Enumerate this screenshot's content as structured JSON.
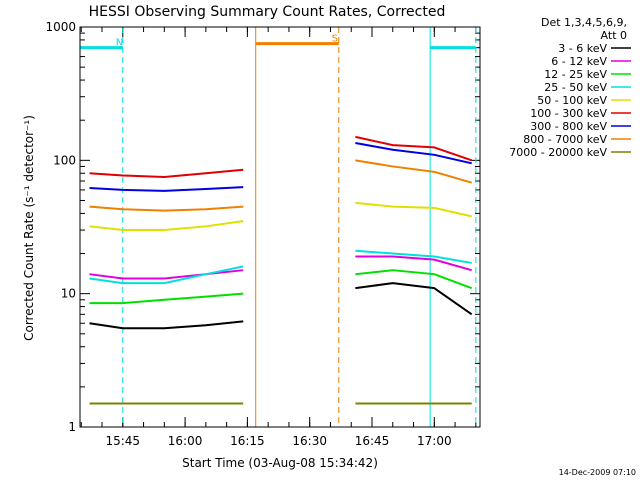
{
  "chart_data": {
    "type": "line",
    "title": "HESSI Observing Summary Count Rates, Corrected",
    "xlabel": "Start Time (03-Aug-08 15:34:42)",
    "ylabel": "Corrected Count Rate (s⁻¹ detector⁻¹)",
    "y_scale": "log",
    "ylim": [
      1,
      1000
    ],
    "xlim": [
      "15:34:42",
      "17:11:00"
    ],
    "x_ticks": [
      "15:45",
      "16:00",
      "16:15",
      "16:30",
      "16:45",
      "17:00"
    ],
    "y_ticks": [
      "1",
      "10",
      "100",
      "1000"
    ],
    "grid": false,
    "legend_header": [
      "Det 1,3,4,5,6,9,",
      "Att 0"
    ],
    "legend_position": "right",
    "series": [
      {
        "name": "3 - 6 keV",
        "color": "#000000",
        "segments": [
          {
            "x": [
              "15:37",
              "15:45",
              "15:55",
              "16:05",
              "16:14"
            ],
            "y": [
              6,
              5.5,
              5.5,
              5.8,
              6.2
            ]
          },
          {
            "x": [
              "16:41",
              "16:50",
              "17:00",
              "17:09"
            ],
            "y": [
              11,
              12,
              11,
              7
            ]
          }
        ]
      },
      {
        "name": "6 - 12 keV",
        "color": "#e000e0",
        "segments": [
          {
            "x": [
              "15:37",
              "15:45",
              "15:55",
              "16:05",
              "16:14"
            ],
            "y": [
              14,
              13,
              13,
              14,
              15
            ]
          },
          {
            "x": [
              "16:41",
              "16:50",
              "17:00",
              "17:09"
            ],
            "y": [
              19,
              19,
              18,
              15
            ]
          }
        ]
      },
      {
        "name": "12 - 25 keV",
        "color": "#00e000",
        "segments": [
          {
            "x": [
              "15:37",
              "15:45",
              "15:55",
              "16:05",
              "16:14"
            ],
            "y": [
              8.5,
              8.5,
              9,
              9.5,
              10
            ]
          },
          {
            "x": [
              "16:41",
              "16:50",
              "17:00",
              "17:09"
            ],
            "y": [
              14,
              15,
              14,
              11
            ]
          }
        ]
      },
      {
        "name": "25 - 50 keV",
        "color": "#00e0e0",
        "segments": [
          {
            "x": [
              "15:37",
              "15:45",
              "15:55",
              "16:05",
              "16:14"
            ],
            "y": [
              13,
              12,
              12,
              14,
              16
            ]
          },
          {
            "x": [
              "16:41",
              "16:50",
              "17:00",
              "17:09"
            ],
            "y": [
              21,
              20,
              19,
              17
            ]
          }
        ]
      },
      {
        "name": "50 - 100 keV",
        "color": "#e0e000",
        "segments": [
          {
            "x": [
              "15:37",
              "15:45",
              "15:55",
              "16:05",
              "16:14"
            ],
            "y": [
              32,
              30,
              30,
              32,
              35
            ]
          },
          {
            "x": [
              "16:41",
              "16:50",
              "17:00",
              "17:09"
            ],
            "y": [
              48,
              45,
              44,
              38
            ]
          }
        ]
      },
      {
        "name": "100 - 300 keV",
        "color": "#e00000",
        "segments": [
          {
            "x": [
              "15:37",
              "15:45",
              "15:55",
              "16:05",
              "16:14"
            ],
            "y": [
              80,
              77,
              75,
              80,
              85
            ]
          },
          {
            "x": [
              "16:41",
              "16:50",
              "17:00",
              "17:09"
            ],
            "y": [
              150,
              130,
              125,
              100
            ]
          }
        ]
      },
      {
        "name": "300 - 800 keV",
        "color": "#0000e0",
        "segments": [
          {
            "x": [
              "15:37",
              "15:45",
              "15:55",
              "16:05",
              "16:14"
            ],
            "y": [
              62,
              60,
              59,
              61,
              63
            ]
          },
          {
            "x": [
              "16:41",
              "16:50",
              "17:00",
              "17:09"
            ],
            "y": [
              135,
              120,
              110,
              95
            ]
          }
        ]
      },
      {
        "name": "800 - 7000 keV",
        "color": "#f08000",
        "segments": [
          {
            "x": [
              "15:37",
              "15:45",
              "15:55",
              "16:05",
              "16:14"
            ],
            "y": [
              45,
              43,
              42,
              43,
              45
            ]
          },
          {
            "x": [
              "16:41",
              "16:50",
              "17:00",
              "17:09"
            ],
            "y": [
              100,
              90,
              82,
              68
            ]
          }
        ]
      },
      {
        "name": "7000 - 20000 keV",
        "color": "#808000",
        "segments": [
          {
            "x": [
              "15:37",
              "16:14"
            ],
            "y": [
              1.5,
              1.5
            ]
          },
          {
            "x": [
              "16:41",
              "17:09"
            ],
            "y": [
              1.5,
              1.5
            ]
          }
        ]
      }
    ],
    "annotations": [
      {
        "label": "N",
        "color": "#00e0e0",
        "bar_from": "15:34:42",
        "bar_to": "15:45",
        "bar_y": 700,
        "dashed_at": "15:45"
      },
      {
        "label": "S",
        "color": "#f08000",
        "bar_from": "16:17",
        "bar_to": "16:37",
        "bar_y": 750,
        "dashed_at": "16:37"
      },
      {
        "label": "",
        "color": "#00e0e0",
        "bar_from": "16:59",
        "bar_to": "17:10",
        "bar_y": 700,
        "dashed_at": "17:10"
      }
    ],
    "footer_date": "14-Dec-2009 07:10"
  }
}
